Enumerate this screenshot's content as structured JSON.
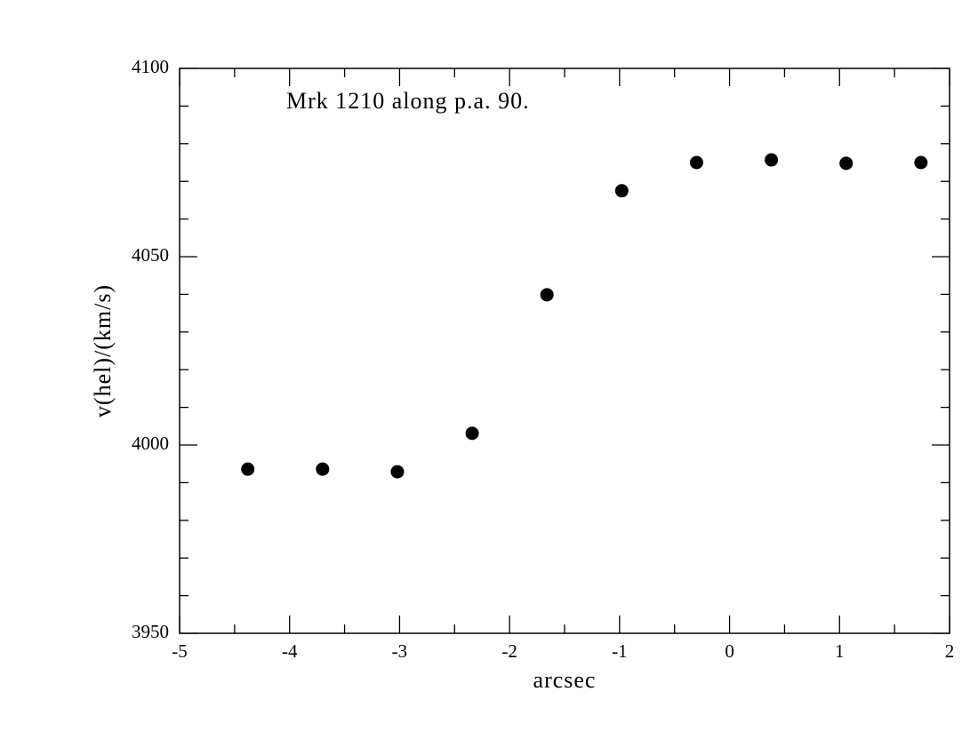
{
  "chart_data": {
    "type": "scatter",
    "annotation": "Mrk 1210 along p.a. 90.",
    "xlabel": "arcsec",
    "ylabel": "v(hel)/(km/s)",
    "series": [
      {
        "color": "#000000",
        "x": [
          -4.38,
          -3.7,
          -3.02,
          -2.34,
          -1.66,
          -0.98,
          -0.3,
          0.38,
          1.06,
          1.74
        ],
        "values": [
          3993.6,
          3993.6,
          3992.9,
          4003.1,
          4039.9,
          4067.5,
          4075.0,
          4075.7,
          4074.8,
          4075.0
        ]
      }
    ],
    "xlim": [
      -5,
      2
    ],
    "xticks": [
      -5,
      -4,
      -3,
      -2,
      -1,
      0,
      1,
      2
    ],
    "xminorticks": [
      -4.5,
      -3.5,
      -2.5,
      -1.5,
      -0.5,
      0.5,
      1.5
    ],
    "ylim": [
      3950,
      4100
    ],
    "yticks": [
      3950,
      4000,
      4050,
      4100
    ],
    "yminorticks": [
      3960,
      3970,
      3980,
      3990,
      4010,
      4020,
      4030,
      4040,
      4060,
      4070,
      4080,
      4090
    ],
    "grid": false
  }
}
